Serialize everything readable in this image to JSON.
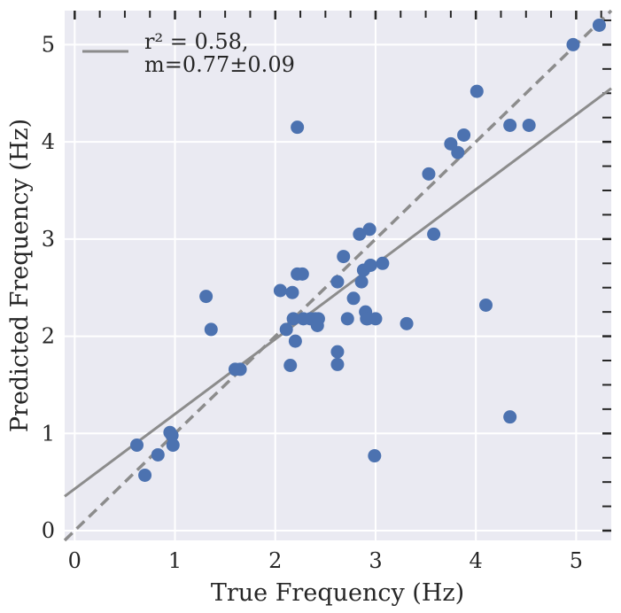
{
  "chart_data": {
    "type": "scatter",
    "xlabel": "True Frequency (Hz)",
    "ylabel": "Predicted Frequency (Hz)",
    "xlim": [
      -0.1,
      5.35
    ],
    "ylim": [
      -0.1,
      5.35
    ],
    "xticks": [
      "0",
      "1",
      "2",
      "3",
      "4",
      "5"
    ],
    "yticks": [
      "0",
      "1",
      "2",
      "3",
      "4",
      "5"
    ],
    "grid": true,
    "legend_position": "top-left",
    "legend": {
      "line1": "r² =  0.58,",
      "line2": "m=0.77±0.09"
    },
    "fit_line": {
      "slope": 0.77,
      "intercept": 0.43
    },
    "identity_line": {
      "slope": 1,
      "intercept": 0
    },
    "colors": {
      "background": "#eaeaf2",
      "grid": "#ffffff",
      "points": "#4c72b0",
      "lines": "#8c8c8c"
    },
    "points": [
      [
        0.62,
        0.88
      ],
      [
        0.7,
        0.57
      ],
      [
        0.83,
        0.78
      ],
      [
        0.95,
        1.01
      ],
      [
        0.97,
        0.98
      ],
      [
        0.98,
        0.88
      ],
      [
        1.31,
        2.41
      ],
      [
        1.36,
        2.07
      ],
      [
        1.6,
        1.66
      ],
      [
        1.65,
        1.66
      ],
      [
        2.05,
        2.47
      ],
      [
        2.11,
        2.07
      ],
      [
        2.15,
        1.7
      ],
      [
        2.17,
        2.45
      ],
      [
        2.18,
        2.18
      ],
      [
        2.2,
        1.95
      ],
      [
        2.22,
        4.15
      ],
      [
        2.22,
        2.64
      ],
      [
        2.27,
        2.64
      ],
      [
        2.28,
        2.18
      ],
      [
        2.35,
        2.18
      ],
      [
        2.4,
        2.18
      ],
      [
        2.42,
        2.11
      ],
      [
        2.43,
        2.18
      ],
      [
        2.62,
        2.56
      ],
      [
        2.62,
        1.84
      ],
      [
        2.62,
        1.71
      ],
      [
        2.68,
        2.82
      ],
      [
        2.72,
        2.18
      ],
      [
        2.78,
        2.39
      ],
      [
        2.84,
        3.05
      ],
      [
        2.86,
        2.56
      ],
      [
        2.88,
        2.68
      ],
      [
        2.9,
        2.25
      ],
      [
        2.91,
        2.18
      ],
      [
        2.92,
        2.18
      ],
      [
        2.94,
        3.1
      ],
      [
        2.95,
        2.73
      ],
      [
        2.99,
        0.77
      ],
      [
        3.0,
        2.18
      ],
      [
        3.07,
        2.75
      ],
      [
        3.31,
        2.13
      ],
      [
        3.53,
        3.67
      ],
      [
        3.58,
        3.05
      ],
      [
        3.75,
        3.98
      ],
      [
        3.82,
        3.89
      ],
      [
        3.88,
        4.07
      ],
      [
        4.01,
        4.52
      ],
      [
        4.1,
        2.32
      ],
      [
        4.34,
        4.17
      ],
      [
        4.34,
        1.17
      ],
      [
        4.53,
        4.17
      ],
      [
        4.97,
        5.0
      ],
      [
        5.23,
        5.2
      ]
    ]
  }
}
